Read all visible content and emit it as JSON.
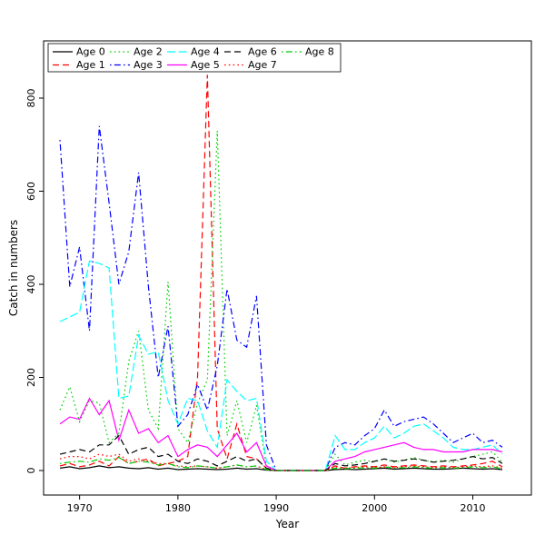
{
  "figure": {
    "background": "#ffffff",
    "border_color": "#000000"
  },
  "chart_data": {
    "type": "line",
    "title": "",
    "xlabel": "Year",
    "ylabel": "Catch in numbers",
    "xlim": [
      1966,
      2016
    ],
    "ylim": [
      0,
      880
    ],
    "x_ticks": [
      1970,
      1980,
      1990,
      2000,
      2010
    ],
    "y_ticks": [
      0,
      200,
      400,
      600,
      800
    ],
    "grid": false,
    "legend_position": "top-left",
    "legend_columns": 5,
    "x": [
      1968,
      1969,
      1970,
      1971,
      1972,
      1973,
      1974,
      1975,
      1976,
      1977,
      1978,
      1979,
      1980,
      1981,
      1982,
      1983,
      1984,
      1985,
      1986,
      1987,
      1988,
      1989,
      1990,
      1991,
      1992,
      1993,
      1994,
      1995,
      1996,
      1997,
      1998,
      1999,
      2000,
      2001,
      2002,
      2003,
      2004,
      2005,
      2006,
      2007,
      2008,
      2009,
      2010,
      2011,
      2012,
      2013
    ],
    "series": [
      {
        "name": "Age 0",
        "color": "#000000",
        "linetype": "solid",
        "values": [
          5,
          8,
          4,
          6,
          10,
          6,
          8,
          5,
          4,
          6,
          3,
          5,
          2,
          3,
          4,
          3,
          2,
          3,
          5,
          3,
          4,
          1,
          0,
          0,
          0,
          0,
          0,
          0,
          2,
          3,
          2,
          3,
          4,
          5,
          3,
          4,
          5,
          4,
          3,
          3,
          4,
          5,
          4,
          3,
          4,
          2
        ]
      },
      {
        "name": "Age 1",
        "color": "#ff0000",
        "linetype": "dashed",
        "values": [
          10,
          15,
          8,
          12,
          20,
          10,
          30,
          15,
          20,
          25,
          10,
          15,
          20,
          30,
          200,
          850,
          90,
          25,
          100,
          30,
          25,
          5,
          0,
          0,
          0,
          0,
          0,
          0,
          10,
          5,
          8,
          10,
          8,
          12,
          8,
          10,
          12,
          10,
          8,
          10,
          8,
          10,
          12,
          15,
          20,
          8
        ]
      },
      {
        "name": "Age 2",
        "color": "#00cd00",
        "linetype": "dotted",
        "values": [
          130,
          180,
          105,
          150,
          145,
          60,
          80,
          235,
          300,
          130,
          90,
          405,
          90,
          60,
          145,
          195,
          730,
          75,
          150,
          60,
          140,
          10,
          0,
          0,
          0,
          0,
          0,
          0,
          35,
          12,
          18,
          22,
          18,
          25,
          18,
          22,
          28,
          22,
          18,
          22,
          18,
          25,
          30,
          35,
          40,
          18
        ]
      },
      {
        "name": "Age 3",
        "color": "#0000ff",
        "linetype": "dotdash",
        "values": [
          710,
          395,
          480,
          300,
          740,
          575,
          400,
          470,
          640,
          395,
          200,
          310,
          95,
          120,
          185,
          130,
          225,
          390,
          280,
          265,
          375,
          55,
          0,
          0,
          0,
          0,
          0,
          0,
          50,
          60,
          55,
          75,
          90,
          130,
          95,
          105,
          110,
          115,
          100,
          80,
          60,
          70,
          80,
          60,
          65,
          50
        ]
      },
      {
        "name": "Age 4",
        "color": "#00ffff",
        "linetype": "longdash",
        "values": [
          320,
          330,
          340,
          450,
          445,
          435,
          155,
          160,
          290,
          250,
          255,
          150,
          100,
          155,
          150,
          85,
          50,
          195,
          170,
          150,
          155,
          20,
          0,
          0,
          0,
          0,
          0,
          0,
          75,
          45,
          45,
          60,
          70,
          95,
          70,
          80,
          95,
          100,
          85,
          70,
          50,
          45,
          45,
          50,
          55,
          35
        ]
      },
      {
        "name": "Age 5",
        "color": "#ff00ff",
        "linetype": "solid",
        "values": [
          100,
          115,
          110,
          155,
          120,
          150,
          65,
          130,
          80,
          90,
          60,
          75,
          30,
          45,
          55,
          50,
          30,
          55,
          80,
          40,
          60,
          10,
          0,
          0,
          0,
          0,
          0,
          0,
          20,
          25,
          30,
          40,
          45,
          50,
          55,
          60,
          50,
          45,
          45,
          40,
          40,
          40,
          45,
          45,
          45,
          40
        ]
      },
      {
        "name": "Age 6",
        "color": "#000000",
        "linetype": "dashed",
        "values": [
          35,
          40,
          45,
          40,
          55,
          55,
          75,
          35,
          45,
          50,
          30,
          35,
          20,
          15,
          25,
          20,
          10,
          20,
          30,
          20,
          25,
          5,
          0,
          0,
          0,
          0,
          0,
          0,
          15,
          10,
          12,
          15,
          20,
          25,
          20,
          22,
          25,
          22,
          18,
          20,
          22,
          25,
          30,
          25,
          28,
          15
        ]
      },
      {
        "name": "Age 7",
        "color": "#ff0000",
        "linetype": "dotted",
        "values": [
          25,
          30,
          30,
          25,
          35,
          30,
          35,
          20,
          25,
          20,
          15,
          15,
          10,
          8,
          10,
          8,
          5,
          8,
          12,
          8,
          10,
          2,
          0,
          0,
          0,
          0,
          0,
          0,
          8,
          5,
          6,
          8,
          6,
          8,
          6,
          8,
          10,
          8,
          6,
          8,
          6,
          8,
          10,
          8,
          10,
          5
        ]
      },
      {
        "name": "Age 8",
        "color": "#00cd00",
        "linetype": "dotdash",
        "values": [
          15,
          18,
          20,
          18,
          25,
          22,
          28,
          15,
          20,
          18,
          12,
          15,
          8,
          6,
          10,
          8,
          5,
          8,
          12,
          8,
          10,
          2,
          0,
          0,
          0,
          0,
          0,
          0,
          5,
          4,
          5,
          6,
          5,
          8,
          5,
          6,
          8,
          6,
          5,
          6,
          5,
          6,
          8,
          6,
          8,
          4
        ]
      }
    ]
  }
}
